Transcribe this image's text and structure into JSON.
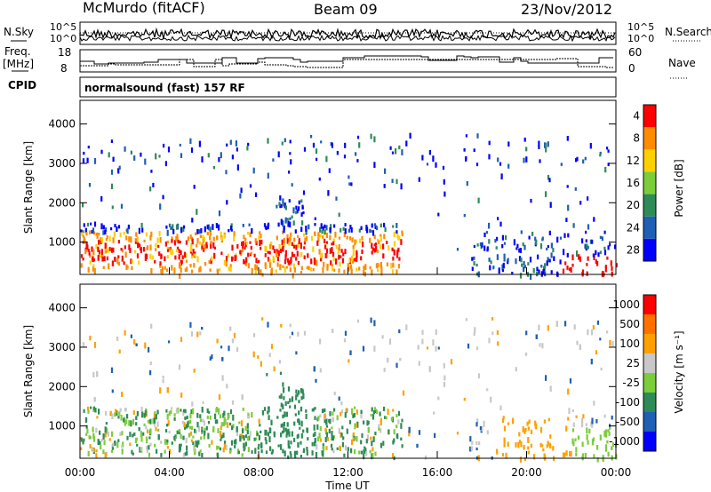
{
  "header": {
    "radar": "McMurdo (fitACF)",
    "beam": "Beam 09",
    "date": "23/Nov/2012"
  },
  "top_panels": {
    "nsky_label": "N.Sky",
    "nsky_ticks": [
      "10^5",
      "10^0"
    ],
    "nsearch_label": "N.Search",
    "nsearch_ticks": [
      "10^5",
      "10^0"
    ],
    "freq_label_1": "Freq.",
    "freq_label_2": "[MHz]",
    "freq_ticks": [
      "18",
      "8"
    ],
    "nave_label": "Nave",
    "nave_ticks": [
      "60",
      "0"
    ],
    "cpid_label": "CPID",
    "cpid_text": "normalsound (fast) 157 RF"
  },
  "chart_data": [
    {
      "type": "heatmap",
      "panel": "power",
      "ylabel": "Slant Range [km]",
      "yticks": [
        "1000",
        "2000",
        "3000",
        "4000"
      ],
      "ylim": [
        180,
        4600
      ],
      "xlim": [
        "00:00",
        "24:00"
      ],
      "colorbar": {
        "label": "Power [dB]",
        "ticks": [
          "4",
          "8",
          "12",
          "16",
          "20",
          "24",
          "28"
        ],
        "colors": [
          "#0000ff",
          "#1f5fb5",
          "#2e8b57",
          "#7ccd3a",
          "#ffd000",
          "#ff8c00",
          "#ff0000"
        ]
      },
      "main_echo_region": {
        "time": [
          "00:00",
          "14:30"
        ],
        "range_km": [
          300,
          1800
        ]
      }
    },
    {
      "type": "heatmap",
      "panel": "velocity",
      "ylabel": "Slant Range [km]",
      "yticks": [
        "1000",
        "2000",
        "3000",
        "4000"
      ],
      "ylim": [
        180,
        4600
      ],
      "xlabel": "Time UT",
      "xticks": [
        "00:00",
        "04:00",
        "08:00",
        "12:00",
        "16:00",
        "20:00",
        "00:00"
      ],
      "colorbar": {
        "label": "Velocity [m s⁻¹]",
        "ticks": [
          "1000",
          "500",
          "100",
          "25",
          "-25",
          "-100",
          "-500",
          "-1000"
        ],
        "colors": [
          "#0000ff",
          "#1f5fb5",
          "#2e8b57",
          "#7ccd3a",
          "#c8c8c8",
          "#ffa000",
          "#ff7000",
          "#ff0000"
        ]
      }
    }
  ]
}
